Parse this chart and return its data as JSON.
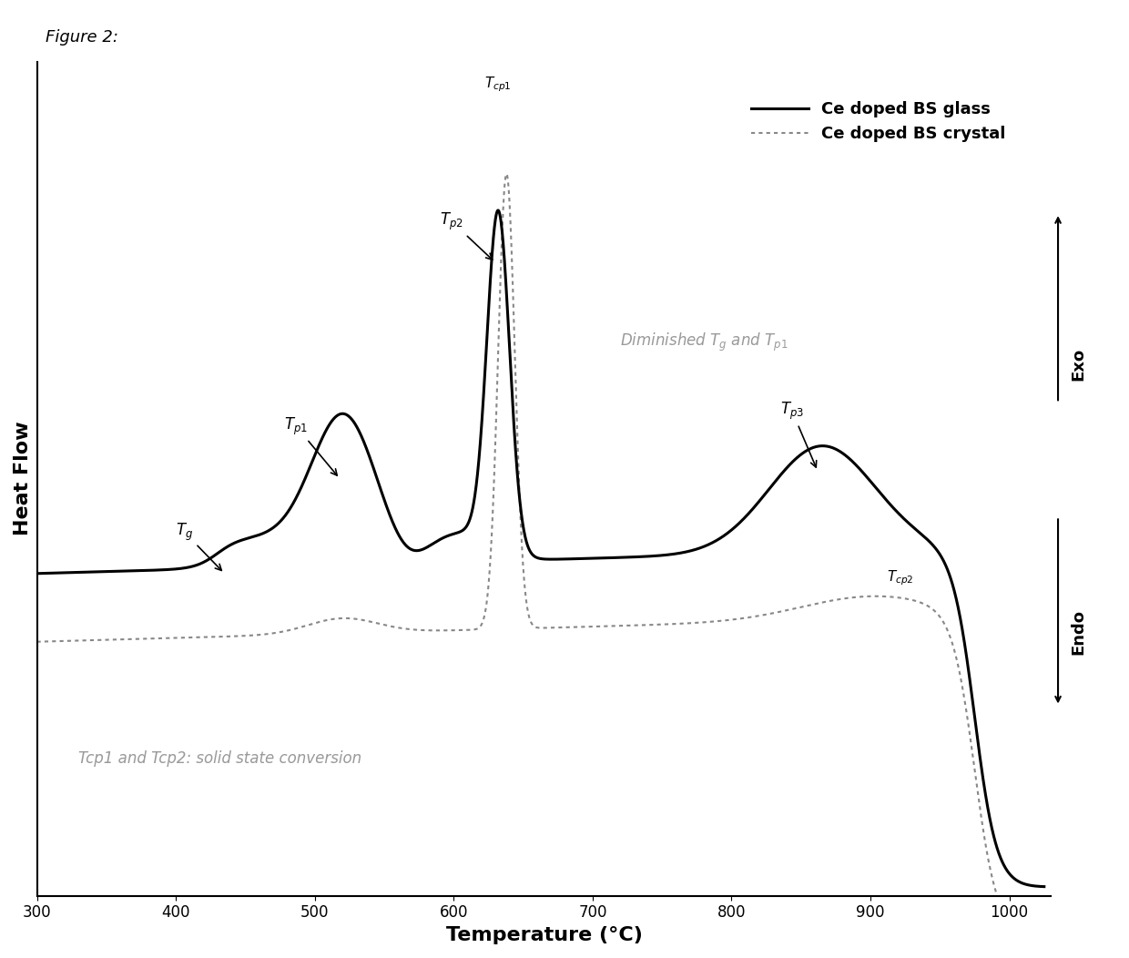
{
  "title": "Figure 2:",
  "xlabel": "Temperature (°C)",
  "ylabel": "Heat Flow",
  "xlim": [
    300,
    1030
  ],
  "ylim": [
    -1.0,
    1.0
  ],
  "x_ticks": [
    300,
    400,
    500,
    600,
    700,
    800,
    900,
    1000
  ],
  "legend_entries": [
    "Ce doped BS glass",
    "Ce doped BS crystal"
  ],
  "glass_color": "#000000",
  "crystal_color": "#888888",
  "background_color": "#ffffff",
  "annotation_color": "#555555",
  "annotation_note_color": "#999999",
  "label_fontsize": 14,
  "tick_fontsize": 12,
  "title_fontsize": 13,
  "legend_fontsize": 13,
  "annot_fontsize": 12
}
